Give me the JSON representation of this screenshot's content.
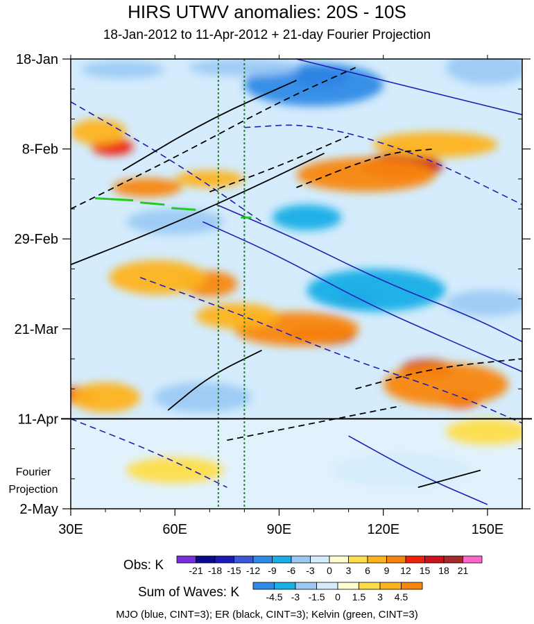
{
  "chart_data": {
    "type": "heatmap",
    "title": "HIRS UTWV anomalies: 20S - 10S",
    "subtitle": "18-Jan-2012 to 11-Apr-2012 + 21-day Fourier Projection",
    "x_axis": {
      "range": [
        30,
        160
      ],
      "ticks": [
        {
          "value": 30,
          "label": "30E"
        },
        {
          "value": 60,
          "label": "60E"
        },
        {
          "value": 90,
          "label": "90E"
        },
        {
          "value": 120,
          "label": "120E"
        },
        {
          "value": 150,
          "label": "150E"
        }
      ]
    },
    "y_axis": {
      "range_days": [
        0,
        105
      ],
      "ticks": [
        {
          "day": 0,
          "label": "18-Jan"
        },
        {
          "day": 21,
          "label": "8-Feb"
        },
        {
          "day": 42,
          "label": "29-Feb"
        },
        {
          "day": 63,
          "label": "21-Mar"
        },
        {
          "day": 84,
          "label": "11-Apr"
        },
        {
          "day": 105,
          "label": "2-May"
        }
      ]
    },
    "projection_label": [
      "Fourier",
      "Projection"
    ],
    "projection_start_day": 84,
    "vertical_markers_lon": [
      72.5,
      80
    ],
    "obs_colorbar": {
      "label": "Obs: K",
      "levels": [
        "-21",
        "-18",
        "-15",
        "-12",
        "-9",
        "-6",
        "-3",
        "0",
        "3",
        "6",
        "9",
        "12",
        "15",
        "18",
        "21"
      ],
      "colors": [
        "#7b2ee0",
        "#0a0a8c",
        "#1a1ab8",
        "#3c57d8",
        "#2e8ae6",
        "#18aee6",
        "#9cc9f4",
        "#d4ecfc",
        "#fffccf",
        "#fedd4a",
        "#fdb31c",
        "#f8860e",
        "#f0200c",
        "#c8141a",
        "#a52a2a",
        "#ff66cc"
      ]
    },
    "waves_colorbar": {
      "label": "Sum of Waves: K",
      "levels": [
        "-4.5",
        "-3",
        "-1.5",
        "0",
        "1.5",
        "3",
        "4.5"
      ],
      "colors": [
        "#2e8ae6",
        "#18aee6",
        "#9cc9f4",
        "#d4ecfc",
        "#fffccf",
        "#fedd4a",
        "#fdb31c",
        "#f8860e"
      ]
    },
    "anomaly_features": [
      {
        "lon": 102,
        "day": 4,
        "rx": 8,
        "ry": 2.8,
        "value": -18
      },
      {
        "lon": 100,
        "day": 6,
        "rx": 20,
        "ry": 5,
        "value": -12
      },
      {
        "lon": 80,
        "day": 2,
        "rx": 16,
        "ry": 2,
        "value": -6
      },
      {
        "lon": 45,
        "day": 2.5,
        "rx": 12,
        "ry": 2,
        "value": -6
      },
      {
        "lon": 150,
        "day": 2,
        "rx": 12,
        "ry": 4,
        "value": -6
      },
      {
        "lon": 42,
        "day": 20.5,
        "rx": 6,
        "ry": 2,
        "value": 12
      },
      {
        "lon": 38,
        "day": 17,
        "rx": 8,
        "ry": 3,
        "value": 6
      },
      {
        "lon": 52,
        "day": 30,
        "rx": 10,
        "ry": 2.2,
        "value": 9
      },
      {
        "lon": 70,
        "day": 28,
        "rx": 10,
        "ry": 2,
        "value": 6
      },
      {
        "lon": 125,
        "day": 25,
        "rx": 12,
        "ry": 3,
        "value": 15
      },
      {
        "lon": 115,
        "day": 27,
        "rx": 20,
        "ry": 4,
        "value": 9
      },
      {
        "lon": 135,
        "day": 20,
        "rx": 18,
        "ry": 3,
        "value": 6
      },
      {
        "lon": 60,
        "day": 38,
        "rx": 14,
        "ry": 3,
        "value": -6
      },
      {
        "lon": 98,
        "day": 37,
        "rx": 10,
        "ry": 3,
        "value": -9
      },
      {
        "lon": 70,
        "day": 52.5,
        "rx": 8,
        "ry": 3,
        "value": 9
      },
      {
        "lon": 55,
        "day": 51,
        "rx": 14,
        "ry": 4,
        "value": 6
      },
      {
        "lon": 112,
        "day": 56,
        "rx": 6,
        "ry": 2,
        "value": -15
      },
      {
        "lon": 118,
        "day": 54,
        "rx": 20,
        "ry": 5,
        "value": -9
      },
      {
        "lon": 150,
        "day": 57,
        "rx": 12,
        "ry": 3,
        "value": -6
      },
      {
        "lon": 102,
        "day": 64.5,
        "rx": 10,
        "ry": 2.3,
        "value": 15
      },
      {
        "lon": 95,
        "day": 63,
        "rx": 18,
        "ry": 4,
        "value": 9
      },
      {
        "lon": 78,
        "day": 60,
        "rx": 12,
        "ry": 3,
        "value": 6
      },
      {
        "lon": 133,
        "day": 72.5,
        "rx": 8,
        "ry": 2.3,
        "value": 15
      },
      {
        "lon": 142,
        "day": 79.5,
        "rx": 6,
        "ry": 2,
        "value": 12
      },
      {
        "lon": 138,
        "day": 76,
        "rx": 18,
        "ry": 5,
        "value": 9
      },
      {
        "lon": 32,
        "day": 78.5,
        "rx": 5,
        "ry": 2,
        "value": 12
      },
      {
        "lon": 40,
        "day": 79,
        "rx": 10,
        "ry": 3.5,
        "value": 6
      },
      {
        "lon": 68,
        "day": 79,
        "rx": 14,
        "ry": 3.5,
        "value": -6
      },
      {
        "lon": 125,
        "day": 96,
        "rx": 20,
        "ry": 4,
        "value": -3
      },
      {
        "lon": 150,
        "day": 87,
        "rx": 12,
        "ry": 3,
        "value": 3
      },
      {
        "lon": 60,
        "day": 96,
        "rx": 14,
        "ry": 3,
        "value": 3
      }
    ],
    "mjo_contours_blue": [
      {
        "style": "solid",
        "points": [
          [
            72,
            34
          ],
          [
            95,
            42
          ],
          [
            120,
            52
          ],
          [
            145,
            60
          ],
          [
            160,
            66
          ]
        ]
      },
      {
        "style": "solid",
        "points": [
          [
            68,
            38
          ],
          [
            90,
            46
          ],
          [
            115,
            57
          ],
          [
            140,
            66
          ],
          [
            160,
            73
          ]
        ]
      },
      {
        "style": "solid",
        "points": [
          [
            95,
            0
          ],
          [
            125,
            6
          ],
          [
            160,
            13
          ]
        ]
      },
      {
        "style": "solid",
        "points": [
          [
            110,
            88
          ],
          [
            130,
            97
          ],
          [
            150,
            104
          ]
        ]
      },
      {
        "style": "dashed",
        "points": [
          [
            30,
            10
          ],
          [
            60,
            24
          ],
          [
            85,
            38
          ]
        ]
      },
      {
        "style": "dashed",
        "points": [
          [
            50,
            51
          ],
          [
            80,
            60
          ],
          [
            110,
            70
          ],
          [
            140,
            78
          ],
          [
            160,
            85
          ]
        ]
      },
      {
        "style": "dashed",
        "points": [
          [
            80,
            16
          ],
          [
            100,
            15
          ],
          [
            130,
            22
          ],
          [
            160,
            34
          ]
        ]
      },
      {
        "style": "dashed",
        "points": [
          [
            30,
            84
          ],
          [
            55,
            92
          ],
          [
            75,
            100
          ]
        ]
      }
    ],
    "er_contours_black": [
      {
        "style": "solid",
        "points": [
          [
            30,
            48
          ],
          [
            55,
            40
          ],
          [
            80,
            31
          ],
          [
            103,
            22
          ]
        ]
      },
      {
        "style": "solid",
        "points": [
          [
            45,
            26
          ],
          [
            70,
            14
          ],
          [
            95,
            5
          ]
        ]
      },
      {
        "style": "solid",
        "points": [
          [
            58,
            82
          ],
          [
            70,
            74
          ],
          [
            85,
            68
          ]
        ]
      },
      {
        "style": "solid",
        "points": [
          [
            130,
            100
          ],
          [
            148,
            96
          ]
        ]
      },
      {
        "style": "dashed",
        "points": [
          [
            30,
            35
          ],
          [
            60,
            23
          ],
          [
            90,
            10
          ],
          [
            112,
            2
          ]
        ]
      },
      {
        "style": "dashed",
        "points": [
          [
            70,
            31
          ],
          [
            90,
            25
          ],
          [
            110,
            18
          ]
        ]
      },
      {
        "style": "dashed",
        "points": [
          [
            95,
            30
          ],
          [
            120,
            22
          ],
          [
            135,
            21
          ]
        ]
      },
      {
        "style": "dashed",
        "points": [
          [
            112,
            77
          ],
          [
            135,
            72
          ],
          [
            160,
            70
          ]
        ]
      },
      {
        "style": "dashed",
        "points": [
          [
            75,
            89
          ],
          [
            100,
            85
          ],
          [
            125,
            81
          ]
        ]
      }
    ],
    "kelvin_contours_green": [
      {
        "style": "solid",
        "points": [
          [
            37,
            32.5
          ],
          [
            48,
            33
          ]
        ]
      },
      {
        "style": "solid",
        "points": [
          [
            50,
            33.5
          ],
          [
            57,
            34
          ]
        ]
      },
      {
        "style": "solid",
        "points": [
          [
            59,
            34.8
          ],
          [
            66,
            35.2
          ]
        ]
      },
      {
        "style": "solid",
        "points": [
          [
            79,
            37
          ],
          [
            82,
            37
          ]
        ]
      }
    ],
    "footer": "MJO (blue, CINT=3); ER (black, CINT=3); Kelvin (green, CINT=3)"
  }
}
